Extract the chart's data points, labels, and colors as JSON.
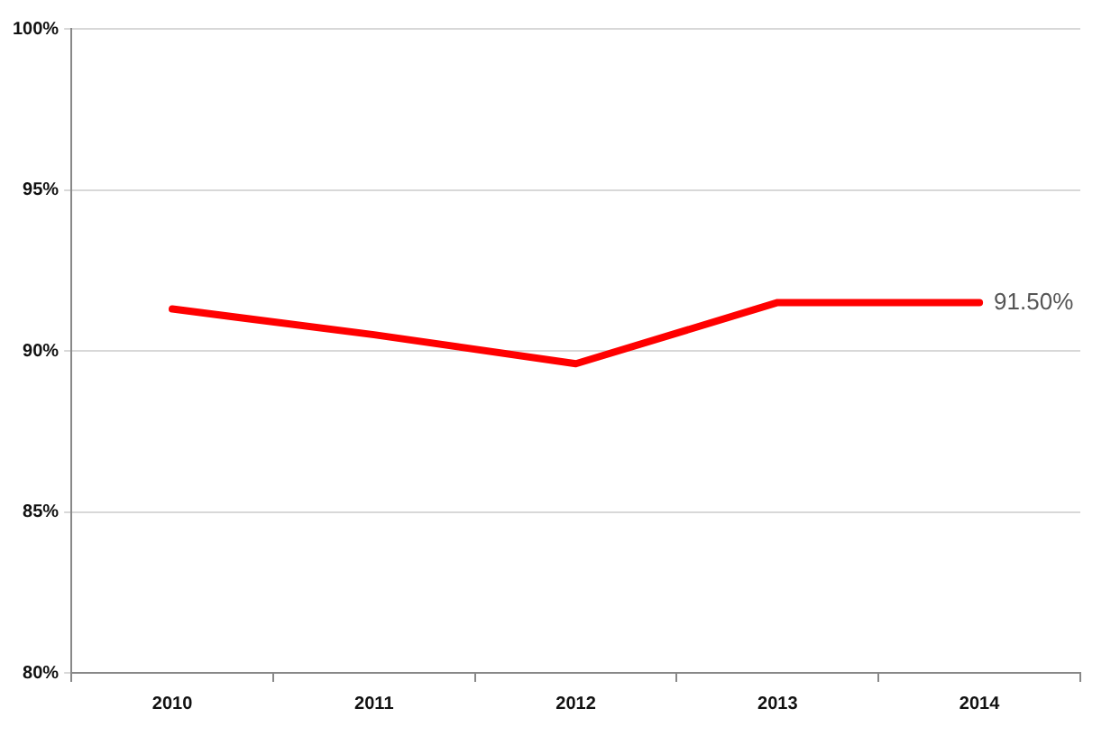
{
  "chart_data": {
    "type": "line",
    "categories": [
      "2010",
      "2011",
      "2012",
      "2013",
      "2014"
    ],
    "series": [
      {
        "color": "#ff0000",
        "values": [
          91.3,
          90.5,
          89.6,
          91.5,
          91.5
        ],
        "value_labels": [
          null,
          null,
          null,
          null,
          "91.50%"
        ]
      }
    ],
    "ylim": [
      80,
      100
    ],
    "yticks": [
      {
        "value": 80,
        "label": "80%"
      },
      {
        "value": 85,
        "label": "85%"
      },
      {
        "value": 90,
        "label": "90%"
      },
      {
        "value": 95,
        "label": "95%"
      },
      {
        "value": 100,
        "label": "100%"
      }
    ],
    "grid": "y",
    "legend": false,
    "marker": "none",
    "line_style": "solid"
  }
}
